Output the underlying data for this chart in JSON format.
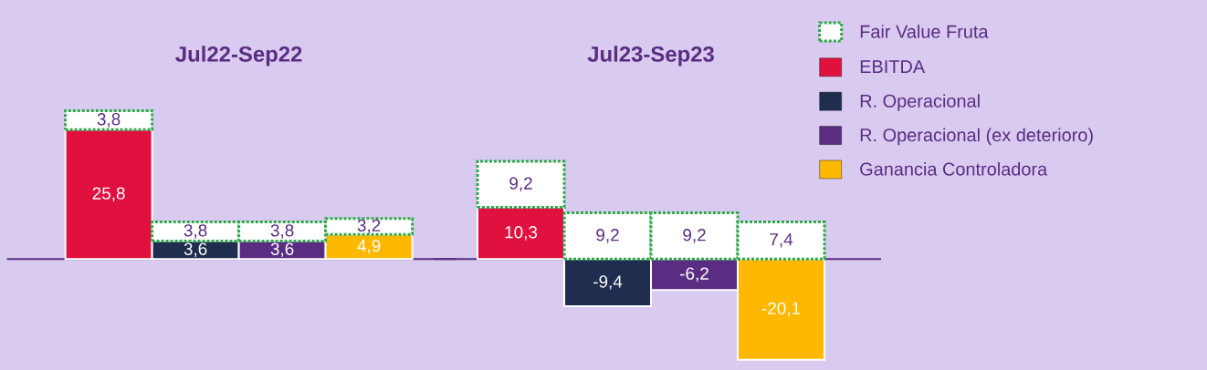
{
  "chart_data": [
    {
      "type": "bar",
      "title": "Jul22-Sep22",
      "categories": [
        null,
        null,
        null,
        null
      ],
      "stacked": true,
      "legend": false,
      "ref_lines": [
        {
          "axis": "y",
          "value": 0,
          "color": "#5a2d82"
        }
      ],
      "series": [
        {
          "color": "#e0103f",
          "values": [
            25.8,
            null,
            null,
            null
          ],
          "value_labels": [
            "25,8",
            null,
            null,
            null
          ]
        },
        {
          "color": "#1f2d4f",
          "values": [
            null,
            3.6,
            null,
            null
          ],
          "value_labels": [
            null,
            "3,6",
            null,
            null
          ]
        },
        {
          "color": "#5a2d82",
          "values": [
            null,
            null,
            3.6,
            null
          ],
          "value_labels": [
            null,
            null,
            "3,6",
            null
          ]
        },
        {
          "color": "#ffb800",
          "values": [
            null,
            null,
            null,
            4.9
          ],
          "value_labels": [
            null,
            null,
            null,
            "4,9"
          ]
        },
        {
          "color": "#ffffff",
          "line_style": "dotted",
          "values": [
            3.8,
            3.8,
            3.8,
            3.2
          ],
          "value_labels": [
            "3,8",
            "3,8",
            "3,8",
            "3,2"
          ]
        }
      ]
    },
    {
      "type": "bar",
      "title": "Jul23-Sep23",
      "categories": [
        null,
        null,
        null,
        null
      ],
      "stacked": true,
      "legend": "top right",
      "ref_lines": [
        {
          "axis": "y",
          "value": 0,
          "color": "#5a2d82"
        }
      ],
      "series": [
        {
          "name": "EBITDA",
          "color": "#e0103f",
          "values": [
            10.3,
            null,
            null,
            null
          ],
          "value_labels": [
            "10,3",
            null,
            null,
            null
          ]
        },
        {
          "name": "R. Operacional",
          "color": "#1f2d4f",
          "values": [
            null,
            -9.4,
            null,
            null
          ],
          "value_labels": [
            null,
            "-9,4",
            null,
            null
          ]
        },
        {
          "name": "R. Operacional (ex deterioro)",
          "color": "#5a2d82",
          "values": [
            null,
            null,
            -6.2,
            null
          ],
          "value_labels": [
            null,
            null,
            "-6,2",
            null
          ]
        },
        {
          "name": "Ganancia Controladora",
          "color": "#ffb800",
          "values": [
            null,
            null,
            null,
            -20.1
          ],
          "value_labels": [
            null,
            null,
            null,
            "-20,1"
          ]
        },
        {
          "name": "Fair Value Fruta",
          "color": "#ffffff",
          "line_style": "dotted",
          "values": [
            9.2,
            9.2,
            9.2,
            7.4
          ],
          "value_labels": [
            "9,2",
            "9,2",
            "9,2",
            "7,4"
          ]
        }
      ]
    }
  ]
}
